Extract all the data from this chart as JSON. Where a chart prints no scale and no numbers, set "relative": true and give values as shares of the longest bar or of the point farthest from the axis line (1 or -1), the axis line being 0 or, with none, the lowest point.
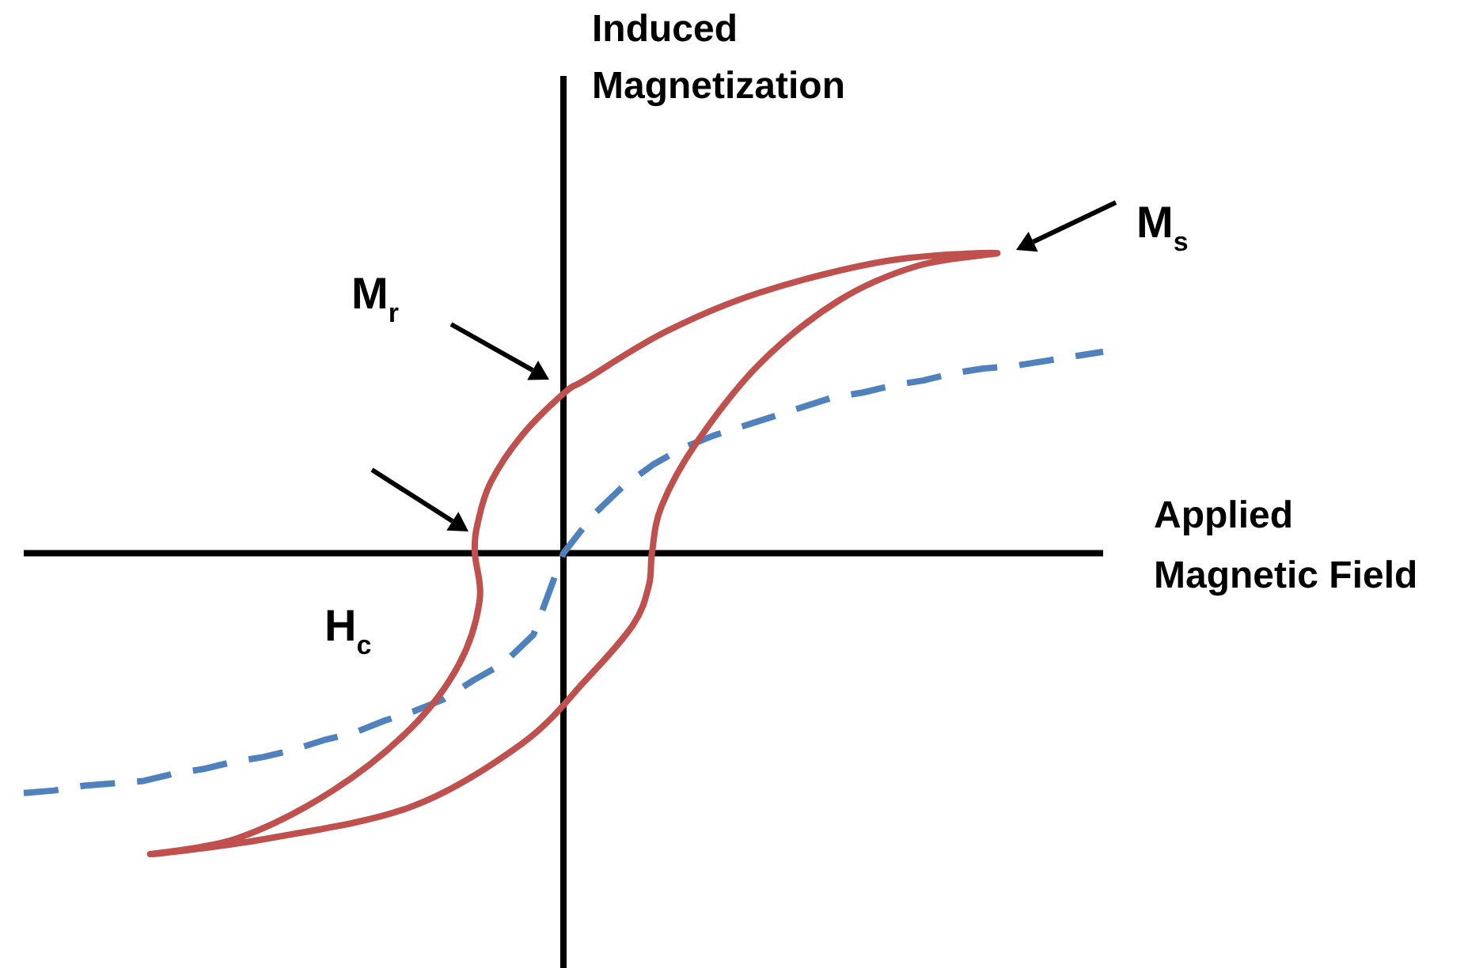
{
  "chart_data": {
    "type": "line",
    "relative": true,
    "xlabel": "Applied Magnetic Field",
    "marker": "none",
    "categories": [
      null,
      null,
      null,
      null,
      null,
      null,
      null,
      null,
      null,
      null,
      null,
      null,
      null,
      null,
      null,
      null,
      null,
      null,
      null,
      null,
      null,
      null,
      null,
      null,
      null,
      null,
      null,
      null,
      null,
      null,
      null,
      null,
      null,
      null,
      null,
      null,
      null
    ],
    "series": [
      {
        "color": "#4f81bd",
        "line_style": "dashed",
        "values": [
          -1,
          -0.99,
          -0.97,
          -0.96,
          -0.95,
          -0.92,
          -0.9,
          -0.87,
          -0.85,
          -0.82,
          -0.78,
          -0.75,
          -0.7,
          -0.66,
          -0.61,
          -0.53,
          -0.46,
          -0.34,
          0,
          0.16,
          0.28,
          0.37,
          0.44,
          0.49,
          0.53,
          0.57,
          0.61,
          0.65,
          0.67,
          0.7,
          0.72,
          0.75,
          0.77,
          0.78,
          0.8,
          0.82,
          0.84
        ]
      }
    ],
    "annotations": [
      "Induced Magnetization",
      "M$_{s}$",
      "M$_{r}$",
      "H$_{c}$"
    ]
  }
}
